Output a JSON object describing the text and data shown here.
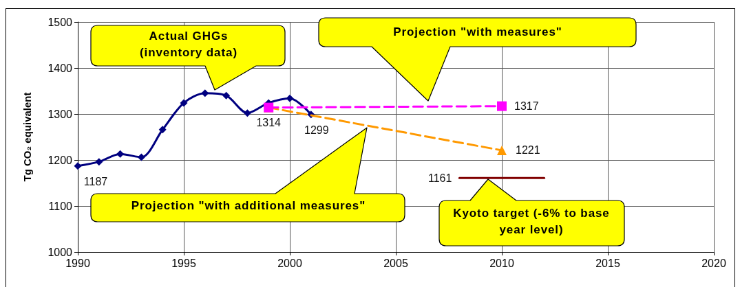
{
  "chart_data": {
    "type": "line",
    "ylabel": "Tg CO₂ equivalent",
    "xlim": [
      1990,
      2020
    ],
    "xticks": [
      1990,
      1995,
      2000,
      2005,
      2010,
      2015,
      2020
    ],
    "ylim": [
      1000,
      1500
    ],
    "yticks": [
      1000,
      1100,
      1200,
      1300,
      1400,
      1500
    ],
    "grid": true,
    "series": [
      {
        "color": "#000080",
        "marker": "diamond",
        "line_style": "solid",
        "x": [
          1990,
          1991,
          1992,
          1993,
          1994,
          1995,
          1996,
          1997,
          1998,
          1999,
          2000,
          2001
        ],
        "values": [
          1187,
          1196,
          1213,
          1206,
          1266,
          1324,
          1345,
          1340,
          1302,
          1324,
          1334,
          1299
        ],
        "value_labels": [
          "1187",
          null,
          null,
          null,
          null,
          null,
          null,
          null,
          null,
          null,
          null,
          "1299"
        ]
      },
      {
        "color": "#ff9900",
        "marker": "triangle",
        "line_style": "dashed",
        "x": [
          1999,
          2010
        ],
        "values": [
          1314,
          1221
        ],
        "value_labels": [
          null,
          "1221"
        ]
      },
      {
        "color": "#ff00ff",
        "marker": "square",
        "line_style": "dashed",
        "x": [
          1999,
          2010
        ],
        "values": [
          1314,
          1317
        ],
        "value_labels": [
          "1314",
          "1317"
        ]
      },
      {
        "color": "#800000",
        "marker": "none",
        "line_style": "solid",
        "x": [
          2008,
          2012
        ],
        "values": [
          1161,
          1161
        ],
        "value_labels": [
          "1161",
          null
        ]
      }
    ],
    "annotations": [
      "Actual GHGs (inventory data)",
      "Projection \"with measures\"",
      "Projection \"with additional measures\"",
      "Kyoto target (-6% to base year level)"
    ]
  }
}
